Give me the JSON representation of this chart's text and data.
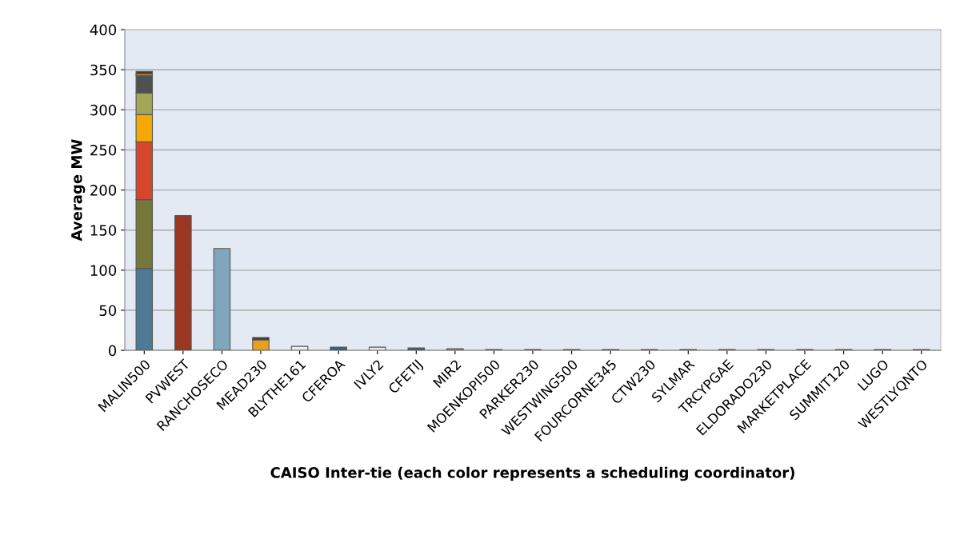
{
  "chart_data": {
    "type": "bar",
    "stacked": true,
    "xlabel": "CAISO Inter-tie (each color represents a scheduling coordinator)",
    "ylabel": "Average MW",
    "categories": [
      "MALIN500",
      "PVWEST",
      "RANCHOSECO",
      "MEAD230",
      "BLYTHE161",
      "CFEROA",
      "IVLY2",
      "CFETIJ",
      "MIR2",
      "MOENKOPI500",
      "PARKER230",
      "WESTWING500",
      "FOURCORNE345",
      "CTW230",
      "SYLMAR",
      "TRCYPGAE",
      "ELDORADO230",
      "MARKETPLACE",
      "SUMMIT120",
      "LUGO",
      "WESTLYQNTO"
    ],
    "series": [
      {
        "color": "#4f7a96",
        "values": [
          102,
          null,
          null,
          null,
          null,
          null,
          null,
          null,
          null,
          null,
          null,
          null,
          null,
          null,
          null,
          null,
          null,
          null,
          null,
          null,
          null
        ]
      },
      {
        "color": "#76773a",
        "values": [
          86,
          null,
          null,
          null,
          null,
          null,
          null,
          null,
          null,
          null,
          null,
          null,
          null,
          null,
          null,
          null,
          null,
          null,
          null,
          null,
          null
        ]
      },
      {
        "color": "#d5462a",
        "values": [
          72,
          null,
          null,
          null,
          null,
          null,
          null,
          null,
          null,
          null,
          null,
          null,
          null,
          null,
          null,
          null,
          null,
          null,
          null,
          null,
          null
        ]
      },
      {
        "color": "#f5a800",
        "values": [
          34,
          null,
          null,
          null,
          null,
          null,
          null,
          null,
          null,
          null,
          null,
          null,
          null,
          null,
          null,
          null,
          null,
          null,
          null,
          null,
          null
        ]
      },
      {
        "color": "#a5a556",
        "values": [
          27,
          null,
          null,
          null,
          null,
          null,
          null,
          null,
          null,
          null,
          null,
          null,
          null,
          null,
          null,
          null,
          null,
          null,
          null,
          null,
          null
        ]
      },
      {
        "color": "#505050",
        "values": [
          22,
          null,
          null,
          null,
          null,
          null,
          null,
          null,
          null,
          null,
          null,
          null,
          null,
          null,
          null,
          null,
          null,
          null,
          null,
          null,
          null
        ]
      },
      {
        "color": "#e8a020",
        "values": [
          2,
          null,
          null,
          13,
          null,
          null,
          null,
          null,
          null,
          null,
          null,
          null,
          null,
          null,
          null,
          null,
          null,
          null,
          null,
          null,
          null
        ]
      },
      {
        "color": "#3c3c3c",
        "values": [
          3,
          null,
          null,
          3,
          null,
          null,
          null,
          null,
          null,
          null,
          null,
          null,
          null,
          null,
          null,
          null,
          null,
          null,
          null,
          null,
          null
        ]
      },
      {
        "color": "#9a3621",
        "values": [
          null,
          168,
          null,
          null,
          null,
          null,
          null,
          null,
          null,
          null,
          null,
          null,
          null,
          null,
          null,
          null,
          null,
          null,
          null,
          null,
          null
        ]
      },
      {
        "color": "#80a6be",
        "values": [
          null,
          null,
          127,
          null,
          null,
          null,
          null,
          null,
          null,
          null,
          null,
          null,
          null,
          null,
          null,
          null,
          null,
          null,
          null,
          null,
          null
        ]
      },
      {
        "color": "#ececf2",
        "values": [
          null,
          null,
          null,
          null,
          5,
          null,
          4,
          null,
          null,
          null,
          null,
          null,
          null,
          null,
          null,
          null,
          null,
          null,
          null,
          null,
          null
        ]
      },
      {
        "color": "#3f5f85",
        "values": [
          null,
          null,
          null,
          null,
          null,
          4,
          null,
          3,
          null,
          null,
          null,
          null,
          null,
          null,
          null,
          null,
          null,
          null,
          null,
          null,
          null
        ]
      },
      {
        "color": "#a0a0a0",
        "values": [
          null,
          null,
          null,
          null,
          null,
          null,
          null,
          null,
          2,
          1,
          1,
          1,
          1,
          1,
          1,
          1,
          1,
          1,
          1,
          1,
          1
        ]
      }
    ],
    "ylim": [
      0,
      400
    ],
    "yticks": [
      0,
      50,
      100,
      150,
      200,
      250,
      300,
      350,
      400
    ],
    "grid": "y"
  }
}
